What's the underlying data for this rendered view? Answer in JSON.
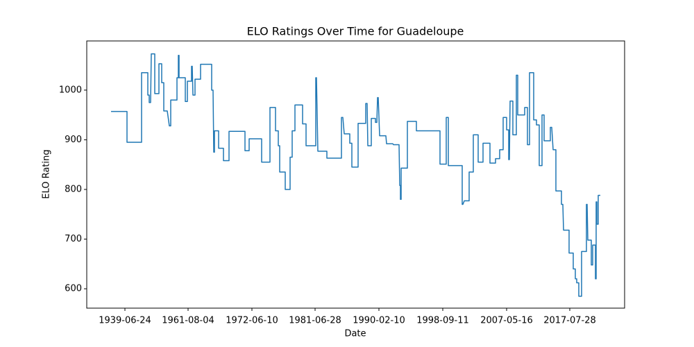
{
  "chart_data": {
    "type": "line",
    "title": "ELO Ratings Over Time for Guadeloupe",
    "xlabel": "Date",
    "ylabel": "ELO Rating",
    "xlim": [
      -35,
      740
    ],
    "ylim": [
      561,
      1099
    ],
    "xticks": [
      {
        "value": 20,
        "label": "1939-06-24"
      },
      {
        "value": 111,
        "label": "1961-08-04"
      },
      {
        "value": 203,
        "label": "1972-06-10"
      },
      {
        "value": 294,
        "label": "1981-06-28"
      },
      {
        "value": 386,
        "label": "1990-02-10"
      },
      {
        "value": 478,
        "label": "1998-09-11"
      },
      {
        "value": 570,
        "label": "2007-05-16"
      },
      {
        "value": 661,
        "label": "2017-07-28"
      }
    ],
    "yticks": [
      600,
      700,
      800,
      900,
      1000
    ],
    "x": [
      0,
      23,
      23,
      44,
      44,
      53,
      53,
      55,
      55,
      57,
      58,
      63,
      63,
      69,
      69,
      73,
      73,
      76,
      76,
      81,
      84,
      86,
      86,
      95,
      95,
      97,
      97,
      98,
      98,
      107,
      107,
      110,
      110,
      116,
      116,
      117,
      118,
      121,
      121,
      129,
      129,
      145,
      145,
      147,
      148,
      149,
      149,
      155,
      155,
      162,
      162,
      170,
      170,
      193,
      193,
      199,
      199,
      217,
      217,
      229,
      229,
      237,
      237,
      241,
      241,
      243,
      243,
      251,
      251,
      258,
      258,
      261,
      261,
      265,
      265,
      276,
      276,
      281,
      281,
      295,
      295,
      296,
      298,
      311,
      311,
      332,
      332,
      334,
      336,
      344,
      344,
      347,
      347,
      356,
      356,
      367,
      367,
      369,
      370,
      375,
      375,
      381,
      381,
      383,
      384,
      385,
      387,
      396,
      397,
      406,
      407,
      415,
      416,
      417,
      417,
      418,
      418,
      427,
      427,
      440,
      440,
      474,
      474,
      483,
      483,
      486,
      486,
      506,
      506,
      507,
      509,
      516,
      516,
      522,
      522,
      529,
      529,
      536,
      536,
      546,
      546,
      554,
      554,
      560,
      560,
      565,
      565,
      570,
      570,
      573,
      573,
      574,
      575,
      579,
      579,
      584,
      584,
      586,
      586,
      596,
      596,
      600,
      600,
      603,
      603,
      609,
      609,
      613,
      613,
      617,
      617,
      621,
      621,
      624,
      624,
      633,
      633,
      635,
      637,
      641,
      641,
      649,
      649,
      651,
      652,
      660,
      660,
      666,
      666,
      669,
      669,
      671,
      671,
      674,
      674,
      678,
      678,
      685,
      685,
      686,
      687,
      692,
      692,
      694,
      694,
      698,
      698,
      699,
      699,
      700,
      700,
      702,
      702,
      705
    ],
    "series": [
      {
        "name": "Guadeloupe",
        "color": "#1f77b4",
        "values": [
          957,
          957,
          895,
          895,
          1035,
          1035,
          990,
          990,
          975,
          975,
          1073,
          1073,
          993,
          993,
          1053,
          1053,
          1015,
          1015,
          958,
          958,
          928,
          928,
          980,
          980,
          1025,
          1025,
          1070,
          1070,
          1025,
          1025,
          977,
          977,
          1018,
          1018,
          1048,
          1048,
          990,
          990,
          1022,
          1022,
          1052,
          1052,
          1000,
          1000,
          875,
          875,
          918,
          918,
          883,
          883,
          858,
          858,
          917,
          917,
          878,
          878,
          902,
          902,
          855,
          855,
          965,
          965,
          918,
          918,
          888,
          888,
          835,
          835,
          800,
          800,
          865,
          865,
          918,
          918,
          970,
          970,
          932,
          932,
          888,
          888,
          1025,
          1025,
          877,
          877,
          863,
          863,
          945,
          945,
          912,
          912,
          893,
          893,
          845,
          845,
          933,
          933,
          973,
          973,
          888,
          888,
          943,
          943,
          935,
          935,
          985,
          985,
          908,
          908,
          892,
          892,
          890,
          890,
          808,
          808,
          780,
          780,
          843,
          843,
          937,
          937,
          918,
          918,
          851,
          851,
          945,
          945,
          848,
          848,
          770,
          770,
          777,
          777,
          835,
          835,
          910,
          910,
          855,
          855,
          893,
          893,
          853,
          853,
          862,
          862,
          880,
          880,
          945,
          945,
          920,
          920,
          860,
          860,
          978,
          978,
          910,
          910,
          1030,
          1030,
          950,
          950,
          965,
          965,
          890,
          890,
          1035,
          1035,
          940,
          940,
          930,
          930,
          848,
          848,
          950,
          950,
          898,
          898,
          925,
          925,
          880,
          880,
          797,
          797,
          770,
          770,
          718,
          718,
          672,
          672,
          640,
          640,
          620,
          620,
          612,
          612,
          585,
          585,
          675,
          675,
          770,
          770,
          698,
          698,
          648,
          648,
          688,
          688,
          620,
          620,
          775,
          775,
          730,
          730,
          788,
          788
        ]
      }
    ]
  }
}
